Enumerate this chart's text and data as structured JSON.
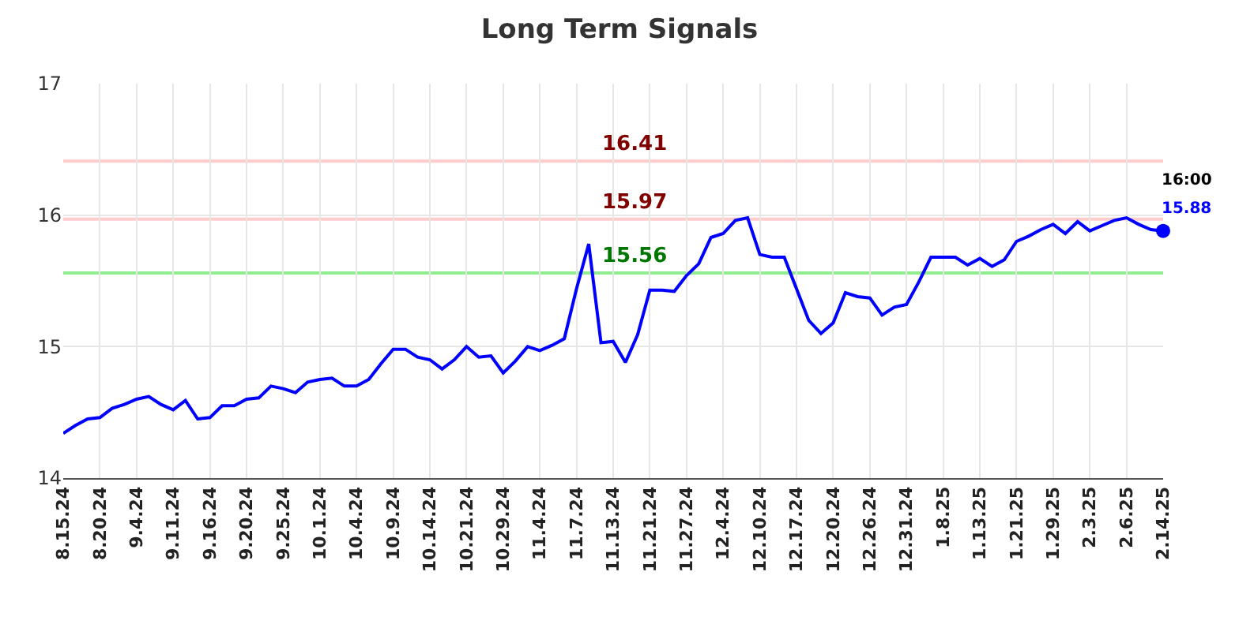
{
  "chart_data": {
    "type": "line",
    "title": "Long Term Signals",
    "categories": [
      "8.15.24",
      null,
      null,
      "8.20.24",
      null,
      null,
      "9.4.24",
      null,
      null,
      "9.11.24",
      null,
      null,
      "9.16.24",
      null,
      null,
      "9.20.24",
      null,
      null,
      "9.25.24",
      null,
      null,
      "10.1.24",
      null,
      null,
      "10.4.24",
      null,
      null,
      "10.9.24",
      null,
      null,
      "10.14.24",
      null,
      null,
      "10.21.24",
      null,
      null,
      "10.29.24",
      null,
      null,
      "11.4.24",
      null,
      null,
      "11.7.24",
      null,
      null,
      "11.13.24",
      null,
      null,
      "11.21.24",
      null,
      null,
      "11.27.24",
      null,
      null,
      "12.4.24",
      null,
      null,
      "12.10.24",
      null,
      null,
      "12.17.24",
      null,
      null,
      "12.20.24",
      null,
      null,
      "12.26.24",
      null,
      null,
      "12.31.24",
      null,
      null,
      "1.8.25",
      null,
      null,
      "1.13.25",
      null,
      null,
      "1.21.25",
      null,
      null,
      "1.29.25",
      null,
      null,
      "2.3.25",
      null,
      null,
      "2.6.25",
      null,
      null,
      "2.14.25"
    ],
    "series": [
      {
        "color": "#0000ff",
        "values": [
          14.34,
          14.4,
          14.45,
          14.46,
          14.53,
          14.56,
          14.6,
          14.62,
          14.56,
          14.52,
          14.59,
          14.45,
          14.46,
          14.55,
          14.55,
          14.6,
          14.61,
          14.7,
          14.68,
          14.65,
          14.73,
          14.75,
          14.76,
          14.7,
          14.7,
          14.75,
          14.87,
          14.98,
          14.98,
          14.92,
          14.9,
          14.83,
          14.9,
          15.0,
          14.92,
          14.93,
          14.8,
          14.89,
          15.0,
          14.97,
          15.01,
          15.06,
          15.44,
          15.78,
          15.03,
          15.04,
          14.88,
          15.09,
          15.43,
          15.43,
          15.42,
          15.54,
          15.63,
          15.83,
          15.86,
          15.96,
          15.98,
          15.7,
          15.68,
          15.68,
          15.44,
          15.2,
          15.1,
          15.18,
          15.41,
          15.38,
          15.37,
          15.24,
          15.3,
          15.32,
          15.49,
          15.68,
          15.68,
          15.68,
          15.62,
          15.67,
          15.61,
          15.66,
          15.8,
          15.84,
          15.89,
          15.93,
          15.86,
          15.95,
          15.88,
          15.92,
          15.96,
          15.98,
          15.93,
          15.89,
          15.88
        ]
      },
      {
        "type": "scatter",
        "color": "#0000ff",
        "marker": "circle",
        "x": [
          "2.14.25"
        ],
        "values": [
          15.88
        ]
      }
    ],
    "ylim": [
      14,
      17
    ],
    "yticks": [
      14,
      15,
      16,
      17
    ],
    "grid": true,
    "marker": "none",
    "line_style": "solid",
    "ref_lines": [
      {
        "axis": "y",
        "value": 16.41,
        "label": "16.41",
        "color": "#ffcccc"
      },
      {
        "axis": "y",
        "value": 15.97,
        "label": "15.97",
        "color": "#ffcccc"
      },
      {
        "axis": "y",
        "value": 15.56,
        "label": "15.56",
        "color": "#90ee90"
      }
    ],
    "annotations": [
      {
        "text": "16:00",
        "x": "2.14.25",
        "y": 15.88
      },
      {
        "text": "15.88",
        "x": "2.14.25",
        "y": 15.88
      }
    ]
  }
}
